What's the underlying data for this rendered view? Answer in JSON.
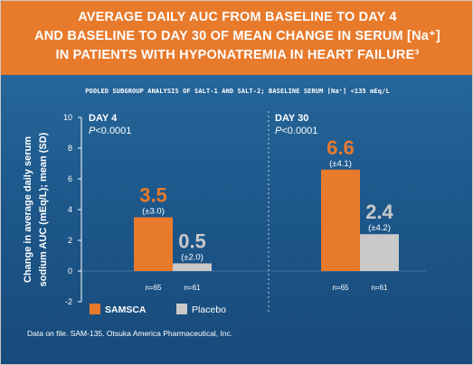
{
  "header": {
    "line1": "AVERAGE DAILY AUC FROM BASELINE TO DAY 4",
    "line2": "AND BASELINE TO DAY 30 OF MEAN CHANGE IN SERUM [Na⁺]",
    "line3": "IN PATIENTS WITH HYPONATREMIA IN HEART FAILURE³"
  },
  "subtitle": "POOLED SUBGROUP ANALYSIS OF SALT-1 AND SALT-2; BASELINE SERUM [Na⁺] <135 mEq/L",
  "footnote": "Data on file. SAM-135. Otsuka America Pharmaceutical, Inc.",
  "colors": {
    "samsca": "#e87a2c",
    "placebo": "#c9c9c9",
    "header_bg": "#e87a2c",
    "panel_bg": "#1f5b8f"
  },
  "chart_data": {
    "type": "bar",
    "categories": [
      "DAY 4",
      "DAY 30"
    ],
    "category_pvalues": [
      {
        "p": "P",
        "rest": "<0.0001"
      },
      {
        "p": "P",
        "rest": "<0.0001"
      }
    ],
    "ylabel_line1": "Change in average daily serum",
    "ylabel_line2": "sodium AUC (mEq/L); mean (SD)",
    "ylim": [
      -2,
      10
    ],
    "yticks": [
      -2,
      0,
      2,
      4,
      6,
      8,
      10
    ],
    "ytick_labels": [
      "-2",
      "0",
      "2",
      "4",
      "6",
      "8",
      "10"
    ],
    "legend_position": "bottom-left",
    "series": [
      {
        "name": "SAMSCA",
        "values": [
          3.5,
          6.6
        ],
        "value_labels": [
          "3.5",
          "6.6"
        ],
        "sd_labels": [
          "(±3.0)",
          "(±4.1)"
        ],
        "n_labels": [
          "n=65",
          "n=65"
        ]
      },
      {
        "name": "Placebo",
        "values": [
          0.5,
          2.4
        ],
        "value_labels": [
          "0.5",
          "2.4"
        ],
        "sd_labels": [
          "(±2.0)",
          "(±4.2)"
        ],
        "n_labels": [
          "n=61",
          "n=61"
        ]
      }
    ]
  }
}
